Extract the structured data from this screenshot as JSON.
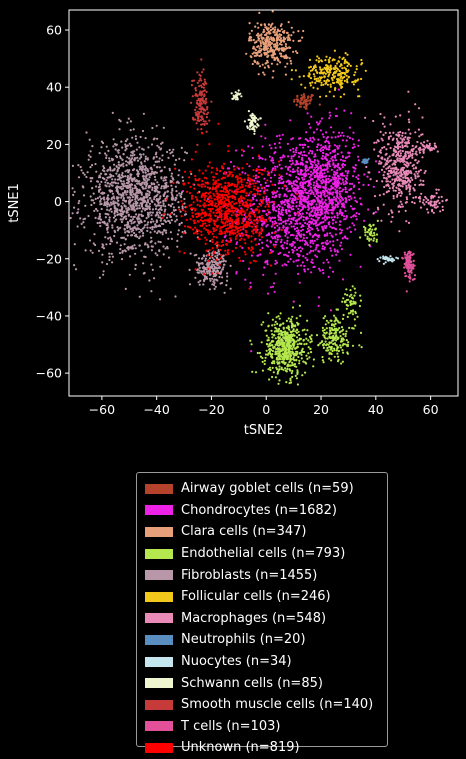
{
  "chart_data": {
    "type": "scatter",
    "title": "",
    "xlabel": "tSNE2",
    "ylabel": "tSNE1",
    "xlim": [
      -72,
      70
    ],
    "ylim": [
      -68,
      67
    ],
    "xticks": [
      -60,
      -40,
      -20,
      0,
      20,
      40,
      60
    ],
    "yticks": [
      -60,
      -40,
      -20,
      0,
      20,
      40,
      60
    ],
    "grid": false,
    "legend_position": "below",
    "series": [
      {
        "name": "Airway goblet cells (n=59)",
        "color": "#b5432b",
        "clusters": [
          {
            "cx": 14,
            "cy": 35,
            "sx": 2,
            "sy": 1.5,
            "n": 59
          }
        ]
      },
      {
        "name": "Chondrocytes (n=1682)",
        "color": "#ee21e6",
        "clusters": [
          {
            "cx": 10,
            "cy": -2,
            "sx": 10,
            "sy": 12,
            "n": 1000
          },
          {
            "cx": 22,
            "cy": 6,
            "sx": 6,
            "sy": 10,
            "n": 682
          }
        ]
      },
      {
        "name": "Clara cells (n=347)",
        "color": "#e8a07b",
        "clusters": [
          {
            "cx": 2,
            "cy": 55,
            "sx": 4,
            "sy": 4,
            "n": 347
          }
        ]
      },
      {
        "name": "Endothelial cells (n=793)",
        "color": "#b4e84e",
        "clusters": [
          {
            "cx": 7,
            "cy": -51,
            "sx": 4,
            "sy": 5,
            "n": 520
          },
          {
            "cx": 25,
            "cy": -48,
            "sx": 4,
            "sy": 4,
            "n": 180
          },
          {
            "cx": 31,
            "cy": -35,
            "sx": 1.5,
            "sy": 2,
            "n": 50
          },
          {
            "cx": 38,
            "cy": -11,
            "sx": 1.5,
            "sy": 1.5,
            "n": 43
          }
        ]
      },
      {
        "name": "Fibroblasts (n=1455)",
        "color": "#b897a8",
        "clusters": [
          {
            "cx": -48,
            "cy": 1,
            "sx": 9,
            "sy": 10,
            "n": 1250
          },
          {
            "cx": -20,
            "cy": -23,
            "sx": 3,
            "sy": 3,
            "n": 205
          }
        ]
      },
      {
        "name": "Follicular cells (n=246)",
        "color": "#f2c81a",
        "clusters": [
          {
            "cx": 24,
            "cy": 45,
            "sx": 5,
            "sy": 3,
            "n": 246
          }
        ]
      },
      {
        "name": "Macrophages (n=548)",
        "color": "#e98ab8",
        "clusters": [
          {
            "cx": 49,
            "cy": 12,
            "sx": 4,
            "sy": 8,
            "n": 450
          },
          {
            "cx": 59,
            "cy": 19,
            "sx": 2,
            "sy": 1,
            "n": 40
          },
          {
            "cx": 61,
            "cy": 0,
            "sx": 2,
            "sy": 2,
            "n": 58
          }
        ]
      },
      {
        "name": "Neutrophils (n=20)",
        "color": "#5b8ec0",
        "clusters": [
          {
            "cx": 36,
            "cy": 14,
            "sx": 0.5,
            "sy": 0.5,
            "n": 20
          }
        ]
      },
      {
        "name": "Nuocytes (n=34)",
        "color": "#c4e6ee",
        "clusters": [
          {
            "cx": 44,
            "cy": -20,
            "sx": 1.5,
            "sy": 0.5,
            "n": 34
          }
        ]
      },
      {
        "name": "Schwann cells (n=85)",
        "color": "#f0f7d0",
        "clusters": [
          {
            "cx": -5,
            "cy": 28,
            "sx": 1,
            "sy": 1.5,
            "n": 60
          },
          {
            "cx": -11,
            "cy": 37,
            "sx": 0.8,
            "sy": 0.8,
            "n": 25
          }
        ]
      },
      {
        "name": "Smooth muscle cells (n=140)",
        "color": "#c73a3a",
        "clusters": [
          {
            "cx": -24,
            "cy": 35,
            "sx": 1.5,
            "sy": 5,
            "n": 140
          }
        ]
      },
      {
        "name": "T cells (n=103)",
        "color": "#e2509a",
        "clusters": [
          {
            "cx": 52,
            "cy": -22,
            "sx": 1,
            "sy": 3,
            "n": 103
          }
        ]
      },
      {
        "name": "Unknown (n=819)",
        "color": "#ff0000",
        "clusters": [
          {
            "cx": -14,
            "cy": -3,
            "sx": 8,
            "sy": 8,
            "n": 819
          }
        ]
      }
    ]
  }
}
